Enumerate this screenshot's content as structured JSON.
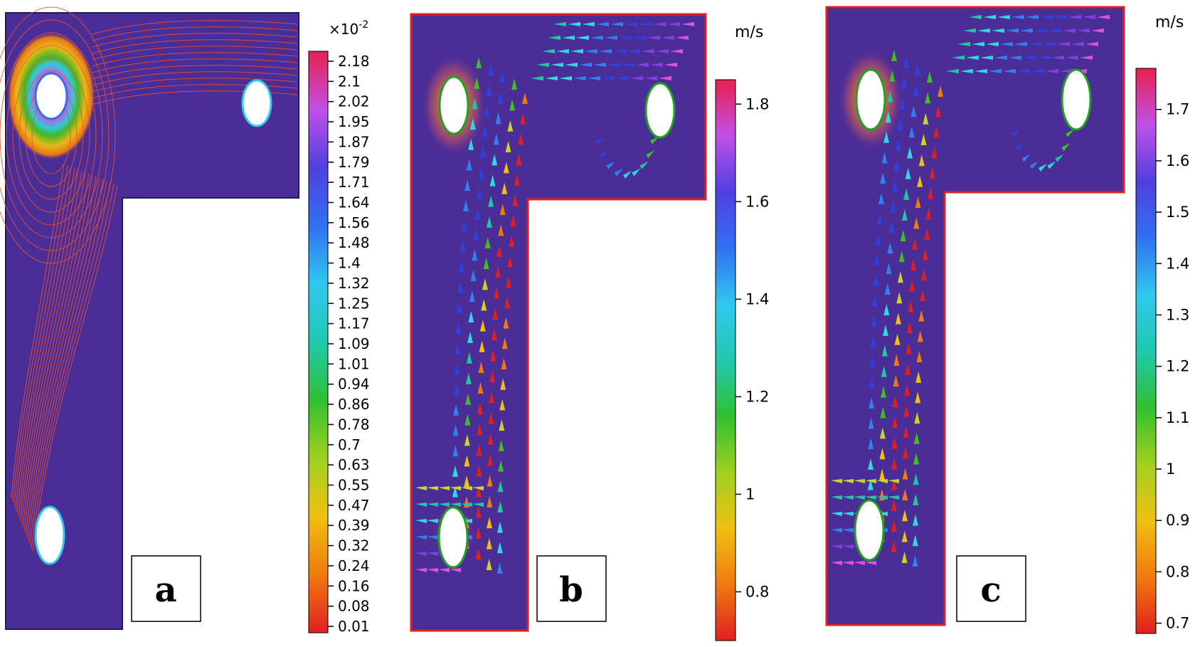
{
  "panels": [
    {
      "id": "a",
      "label": "a",
      "colorbar": {
        "unit": "",
        "exponent_prefix": "×10",
        "exponent_power": "-2",
        "ticks": [
          "2.18",
          "2.1",
          "2.02",
          "1.95",
          "1.87",
          "1.79",
          "1.71",
          "1.64",
          "1.56",
          "1.48",
          "1.4",
          "1.32",
          "1.25",
          "1.17",
          "1.09",
          "1.01",
          "0.94",
          "0.86",
          "0.78",
          "0.7",
          "0.63",
          "0.55",
          "0.47",
          "0.39",
          "0.32",
          "0.24",
          "0.16",
          "0.08",
          "0.01"
        ],
        "min": 0.01,
        "max": 2.18
      }
    },
    {
      "id": "b",
      "label": "b",
      "colorbar": {
        "unit": "m/s",
        "ticks": [
          "1.8",
          "1.6",
          "1.4",
          "1.2",
          "1",
          "0.8"
        ],
        "tick_values": [
          1.8,
          1.6,
          1.4,
          1.2,
          1.0,
          0.8
        ],
        "min": 0.7,
        "max": 1.85
      }
    },
    {
      "id": "c",
      "label": "c",
      "colorbar": {
        "unit": "m/s",
        "ticks": [
          "1.7",
          "1.6",
          "1.5",
          "1.4",
          "1.3",
          "1.2",
          "1.1",
          "1",
          "0.9",
          "0.8",
          "0.7"
        ],
        "tick_values": [
          1.7,
          1.6,
          1.5,
          1.4,
          1.3,
          1.2,
          1.1,
          1.0,
          0.9,
          0.8,
          0.7
        ],
        "min": 0.68,
        "max": 1.78
      }
    }
  ],
  "colors": {
    "domain_fill": "#4b2d97",
    "domain_edge": "#e02020",
    "colormap": [
      "#e02020",
      "#f07a10",
      "#f0c010",
      "#c8d820",
      "#40c020",
      "#20c8a0",
      "#30d8e0",
      "#3080f0",
      "#3040e0",
      "#8040e0",
      "#e050e0",
      "#e82060"
    ]
  }
}
